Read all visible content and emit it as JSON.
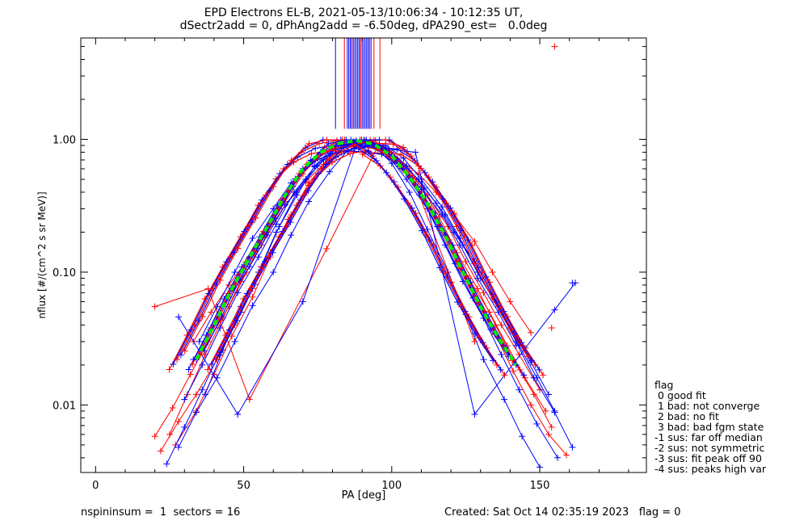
{
  "title": {
    "line1": "EPD Electrons EL-B, 2021-05-13/10:06:34 - 10:12:35 UT,",
    "line2": "dSectr2add = 0, dPhAng2add = -6.50deg, dPA290_est=   0.0deg"
  },
  "footer": {
    "left": "nspininsum =  1  sectors = 16",
    "right": "Created: Sat Oct 14 02:35:19 2023   flag = 0"
  },
  "legend": {
    "title": "flag",
    "items": [
      " 0 good fit",
      " 1 bad: not converge",
      " 2 bad: no fit",
      " 3 bad: bad fgm state",
      "-1 sus: far off median",
      "-2 sus: not symmetric",
      "-3 sus: fit peak off 90",
      "-4 sus: peaks high var"
    ]
  },
  "chart_data": {
    "type": "line",
    "xlabel": "PA [deg]",
    "ylabel": "nflux [#/(cm^2 s sr MeV)]",
    "xlim": [
      -5,
      186
    ],
    "ylim": [
      0.0031,
      5.8
    ],
    "yscale": "log",
    "xticks": [
      0,
      50,
      100,
      150
    ],
    "xtick_labels": [
      "0",
      "50",
      "100",
      "150"
    ],
    "yticks": [
      0.01,
      0.1,
      1.0
    ],
    "ytick_labels": [
      "0.01",
      "0.10",
      "1.00"
    ],
    "colors": {
      "red": "#ff0000",
      "blue": "#0000ff",
      "median": "#00ee00"
    },
    "series": [
      {
        "color": "red",
        "x": [
          22,
          28,
          34,
          41,
          47,
          53,
          59,
          66,
          72,
          79,
          85,
          91,
          97,
          103,
          110,
          116,
          122,
          128,
          135,
          141,
          147,
          153,
          159
        ],
        "y": [
          0.0045,
          0.0075,
          0.012,
          0.022,
          0.04,
          0.075,
          0.14,
          0.27,
          0.47,
          0.72,
          0.9,
          0.93,
          0.82,
          0.62,
          0.4,
          0.22,
          0.12,
          0.065,
          0.034,
          0.018,
          0.01,
          0.006,
          0.0042
        ]
      },
      {
        "color": "red",
        "x": [
          25,
          31,
          37,
          43,
          49,
          56,
          62,
          68,
          75,
          81,
          87,
          94,
          100,
          106,
          112,
          119,
          125,
          131,
          137,
          143,
          150
        ],
        "y": [
          0.006,
          0.012,
          0.024,
          0.045,
          0.085,
          0.16,
          0.3,
          0.5,
          0.72,
          0.88,
          0.95,
          0.98,
          0.8,
          0.58,
          0.38,
          0.22,
          0.12,
          0.07,
          0.04,
          0.024,
          0.013
        ]
      },
      {
        "color": "red",
        "x": [
          20,
          26,
          32,
          38,
          45,
          51,
          57,
          64,
          70,
          76,
          83,
          89,
          95,
          101,
          108,
          114,
          120,
          126,
          133,
          139,
          145,
          152
        ],
        "y": [
          0.0058,
          0.0095,
          0.017,
          0.03,
          0.055,
          0.1,
          0.19,
          0.34,
          0.55,
          0.78,
          0.92,
          0.95,
          0.88,
          0.68,
          0.46,
          0.28,
          0.16,
          0.09,
          0.05,
          0.028,
          0.016,
          0.009
        ]
      },
      {
        "color": "red",
        "x": [
          33,
          39,
          45,
          52,
          58,
          64,
          71,
          77,
          83,
          90,
          96,
          102,
          109,
          115,
          121,
          128,
          134,
          140,
          147
        ],
        "y": [
          0.03,
          0.05,
          0.08,
          0.13,
          0.2,
          0.32,
          0.48,
          0.65,
          0.8,
          0.88,
          0.85,
          0.72,
          0.55,
          0.4,
          0.27,
          0.17,
          0.1,
          0.06,
          0.035
        ]
      },
      {
        "color": "red",
        "x": [
          27,
          34,
          40,
          46,
          53,
          59,
          65,
          72,
          78,
          84,
          91,
          97,
          103,
          110,
          116,
          122,
          129,
          135,
          141,
          148,
          154
        ],
        "y": [
          0.005,
          0.009,
          0.017,
          0.033,
          0.065,
          0.13,
          0.25,
          0.45,
          0.7,
          0.9,
          0.97,
          0.88,
          0.66,
          0.44,
          0.26,
          0.14,
          0.075,
          0.04,
          0.022,
          0.012,
          0.0068
        ]
      },
      {
        "color": "blue",
        "x": [
          24,
          30,
          36,
          42,
          49,
          55,
          61,
          68,
          74,
          80,
          87,
          93,
          99,
          105,
          112,
          118,
          124,
          131,
          137,
          143,
          149,
          156
        ],
        "y": [
          0.0036,
          0.0068,
          0.013,
          0.025,
          0.05,
          0.1,
          0.2,
          0.38,
          0.63,
          0.86,
          0.96,
          0.92,
          0.74,
          0.5,
          0.3,
          0.16,
          0.085,
          0.045,
          0.024,
          0.013,
          0.0072,
          0.004
        ]
      },
      {
        "color": "blue",
        "x": [
          30,
          36,
          42,
          48,
          55,
          61,
          67,
          74,
          80,
          86,
          93,
          99,
          105,
          111,
          118,
          124,
          130,
          137,
          143,
          149,
          155
        ],
        "y": [
          0.011,
          0.02,
          0.038,
          0.07,
          0.13,
          0.23,
          0.4,
          0.62,
          0.82,
          0.94,
          0.95,
          0.84,
          0.63,
          0.43,
          0.27,
          0.16,
          0.09,
          0.05,
          0.028,
          0.016,
          0.009
        ]
      },
      {
        "color": "blue",
        "x": [
          33,
          39,
          45,
          52,
          58,
          64,
          71,
          77,
          83,
          90,
          96,
          102,
          109,
          115,
          121,
          128,
          134,
          140,
          147,
          153
        ],
        "y": [
          0.022,
          0.038,
          0.065,
          0.11,
          0.19,
          0.32,
          0.5,
          0.7,
          0.86,
          0.93,
          0.88,
          0.7,
          0.5,
          0.33,
          0.2,
          0.12,
          0.068,
          0.038,
          0.021,
          0.012
        ]
      },
      {
        "color": "blue",
        "x": [
          28,
          34,
          41,
          47,
          53,
          60,
          66,
          72,
          79,
          85,
          91,
          98,
          104,
          110,
          117,
          123,
          129,
          136,
          142,
          148,
          155,
          161
        ],
        "y": [
          0.0048,
          0.0088,
          0.016,
          0.03,
          0.056,
          0.1,
          0.19,
          0.34,
          0.57,
          0.82,
          0.94,
          0.9,
          0.72,
          0.5,
          0.31,
          0.18,
          0.1,
          0.055,
          0.03,
          0.016,
          0.0088,
          0.0048
        ]
      },
      {
        "color": "blue",
        "x": [
          35,
          41,
          47,
          53,
          60,
          66,
          72,
          79,
          85,
          91,
          98,
          104,
          110,
          117,
          123,
          129,
          136,
          142
        ],
        "y": [
          0.03,
          0.055,
          0.1,
          0.18,
          0.3,
          0.47,
          0.66,
          0.82,
          0.92,
          0.9,
          0.78,
          0.6,
          0.42,
          0.27,
          0.16,
          0.09,
          0.05,
          0.028
        ]
      },
      {
        "color": "blue",
        "x": [
          37,
          43,
          49,
          56,
          62,
          68,
          75,
          81,
          87,
          94,
          100,
          106,
          112,
          119,
          125,
          131,
          138,
          144,
          150
        ],
        "y": [
          0.012,
          0.026,
          0.055,
          0.11,
          0.22,
          0.4,
          0.63,
          0.84,
          0.95,
          0.9,
          0.66,
          0.4,
          0.21,
          0.1,
          0.048,
          0.022,
          0.011,
          0.0058,
          0.0034
        ]
      },
      {
        "color": "red",
        "x": [
          20,
          38,
          52,
          78,
          95,
          107,
          128
        ],
        "y": [
          0.055,
          0.075,
          0.011,
          0.15,
          0.86,
          0.52,
          0.03
        ]
      },
      {
        "color": "blue",
        "x": [
          28,
          48,
          70,
          88,
          108,
          128,
          155,
          162
        ],
        "y": [
          0.046,
          0.0085,
          0.06,
          0.9,
          0.8,
          0.0085,
          0.052,
          0.083
        ]
      }
    ],
    "median_curve": {
      "color": "median",
      "x": [
        34,
        40,
        46,
        52,
        58,
        64,
        70,
        76,
        82,
        88,
        94,
        100,
        106,
        112,
        118,
        124,
        130,
        136,
        142
      ],
      "y": [
        0.022,
        0.04,
        0.075,
        0.13,
        0.22,
        0.38,
        0.6,
        0.8,
        0.93,
        0.98,
        0.92,
        0.75,
        0.52,
        0.33,
        0.19,
        0.1,
        0.055,
        0.032,
        0.02
      ]
    },
    "spikes": {
      "blue_x": [
        81,
        85,
        85.5,
        86,
        86.5,
        87,
        87.5,
        88,
        88.5,
        89,
        89.5,
        90,
        90.5,
        91,
        91.5,
        92,
        92.5,
        93
      ],
      "red_x": [
        84,
        86.5,
        89.5,
        92.5,
        94,
        96
      ],
      "y_low": 1.2
    },
    "outlier_markers": [
      {
        "x": 155,
        "y": 5.0,
        "color": "red"
      },
      {
        "x": 161,
        "y": 0.083,
        "color": "blue"
      },
      {
        "x": 154,
        "y": 0.038,
        "color": "red"
      }
    ]
  }
}
